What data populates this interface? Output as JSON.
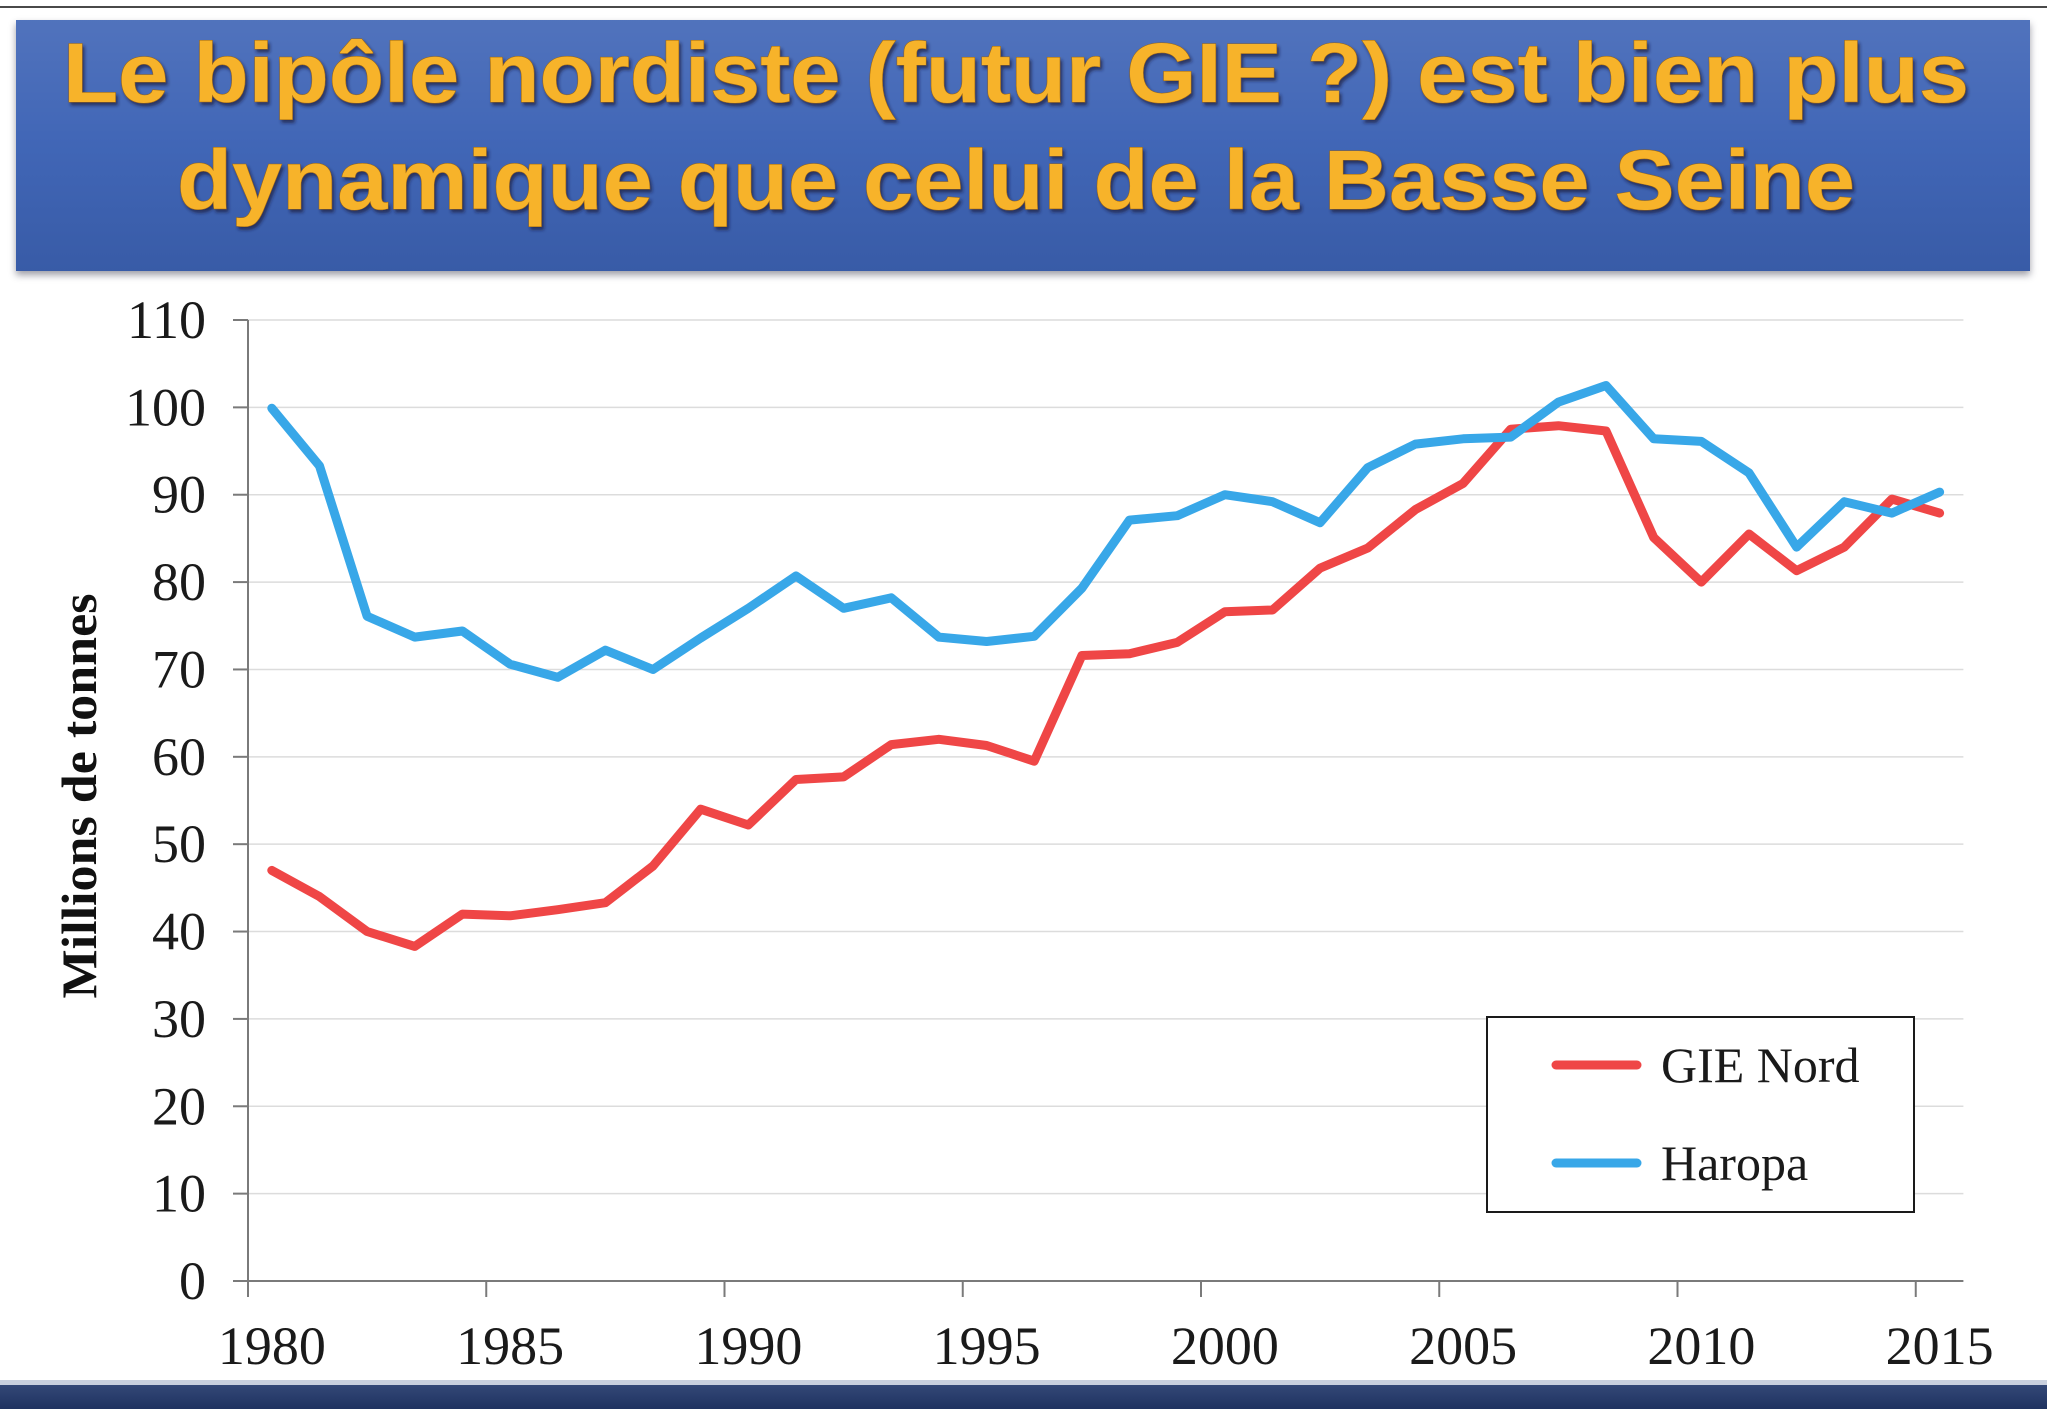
{
  "header": {
    "title_line1": "Le bipôle nordiste (futur GIE ?) est bien plus",
    "title_line2": "dynamique que celui de la Basse Seine"
  },
  "colors": {
    "banner": "#3d63b5",
    "title_text": "#f7b32b",
    "footer_band": "#22386b"
  },
  "chart_data": {
    "type": "line",
    "x": [
      1980,
      1981,
      1982,
      1983,
      1984,
      1985,
      1986,
      1987,
      1988,
      1989,
      1990,
      1991,
      1992,
      1993,
      1994,
      1995,
      1996,
      1997,
      1998,
      1999,
      2000,
      2001,
      2002,
      2003,
      2004,
      2005,
      2006,
      2007,
      2008,
      2009,
      2010,
      2011,
      2012,
      2013,
      2014,
      2015
    ],
    "x_tick_labels": [
      "1980",
      "1985",
      "1990",
      "1995",
      "2000",
      "2005",
      "2010",
      "2015"
    ],
    "y_ticks": [
      0,
      10,
      20,
      30,
      40,
      50,
      60,
      70,
      80,
      90,
      100,
      110
    ],
    "ylabel": "Millions de tonnes",
    "ylim": [
      0,
      110
    ],
    "grid": true,
    "legend": "bottom-right",
    "series": [
      {
        "name": "GIE Nord",
        "color": "#ef4646",
        "values": [
          47,
          44,
          40,
          38.3,
          42,
          41.8,
          42.5,
          43.3,
          47.5,
          54,
          52.2,
          57.4,
          57.7,
          61.4,
          62,
          61.3,
          59.5,
          71.6,
          71.8,
          73.1,
          76.6,
          76.8,
          81.6,
          83.9,
          88.3,
          91.3,
          97.5,
          97.9,
          97.3,
          85.1,
          80,
          85.5,
          81.3,
          84,
          89.5,
          87.9
        ]
      },
      {
        "name": "Haropa",
        "color": "#38a7e8",
        "values": [
          99.9,
          93.3,
          76.1,
          73.7,
          74.4,
          70.6,
          69.1,
          72.2,
          70,
          73.6,
          77,
          80.7,
          77,
          78.2,
          73.7,
          73.2,
          73.8,
          79.3,
          87.1,
          87.6,
          90,
          89.2,
          86.8,
          93.1,
          95.8,
          96.4,
          96.6,
          100.6,
          102.5,
          96.4,
          96.1,
          92.5,
          84,
          89.2,
          87.9,
          90.3
        ]
      }
    ]
  }
}
